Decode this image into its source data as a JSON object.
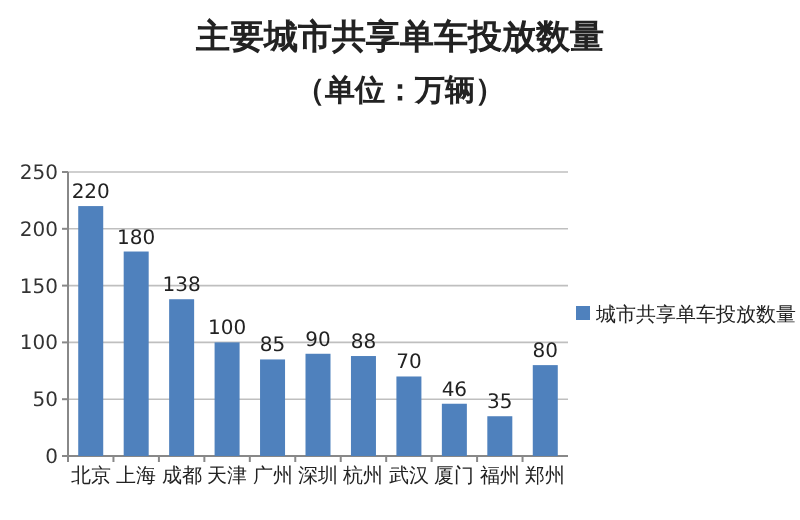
{
  "chart_data": {
    "type": "bar",
    "title": "主要城市共享单车投放数量",
    "subtitle": "（单位：万辆）",
    "categories": [
      "北京",
      "上海",
      "成都",
      "天津",
      "广州",
      "深圳",
      "杭州",
      "武汉",
      "厦门",
      "福州",
      "郑州"
    ],
    "series": [
      {
        "name": "城市共享单车投放数量",
        "color": "#4f81bd",
        "values": [
          220,
          180,
          138,
          100,
          85,
          90,
          88,
          70,
          46,
          35,
          80
        ]
      }
    ],
    "ylim": [
      0,
      250
    ],
    "yticks": [
      0,
      50,
      100,
      150,
      200,
      250
    ],
    "grid": "y",
    "legend": "right",
    "data_labels": true
  }
}
